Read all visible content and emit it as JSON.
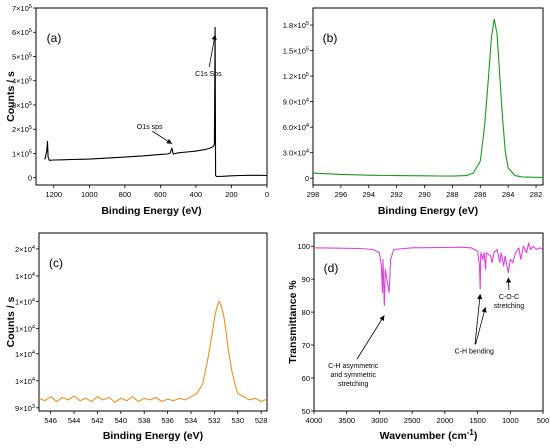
{
  "chart_data": [
    {
      "type": "line",
      "panel_label": "(a)",
      "xlabel": "Binding Energy (eV)",
      "ylabel": "Counts / s",
      "xlim": [
        1300,
        0
      ],
      "ylim": [
        -30000,
        700000
      ],
      "x_reversed": true,
      "xticks": [
        {
          "v": 1200,
          "t": "1200"
        },
        {
          "v": 1000,
          "t": "1000"
        },
        {
          "v": 800,
          "t": "800"
        },
        {
          "v": 600,
          "t": "600"
        },
        {
          "v": 400,
          "t": "400"
        },
        {
          "v": 200,
          "t": "200"
        },
        {
          "v": 0,
          "t": "0"
        }
      ],
      "yticks": [
        {
          "v": 0,
          "t": "0"
        },
        {
          "v": 100000,
          "t": "1×10⁵"
        },
        {
          "v": 200000,
          "t": "2×10⁵"
        },
        {
          "v": 300000,
          "t": "3×10⁵"
        },
        {
          "v": 400000,
          "t": "4×10⁵"
        },
        {
          "v": 500000,
          "t": "5×10⁵"
        },
        {
          "v": 600000,
          "t": "6×10⁵"
        },
        {
          "v": 700000,
          "t": "7×10⁵"
        }
      ],
      "series": [
        {
          "color": "#000000",
          "points": [
            [
              1250,
              75000
            ],
            [
              1240,
              110000
            ],
            [
              1235,
              150000
            ],
            [
              1232,
              85000
            ],
            [
              1225,
              72000
            ],
            [
              1200,
              73000
            ],
            [
              1150,
              74000
            ],
            [
              1100,
              75000
            ],
            [
              1050,
              76000
            ],
            [
              1000,
              77000
            ],
            [
              950,
              79000
            ],
            [
              900,
              81000
            ],
            [
              850,
              83000
            ],
            [
              800,
              85000
            ],
            [
              750,
              88000
            ],
            [
              700,
              90000
            ],
            [
              650,
              93000
            ],
            [
              600,
              96000
            ],
            [
              560,
              98000
            ],
            [
              545,
              102000
            ],
            [
              535,
              122000
            ],
            [
              528,
              98000
            ],
            [
              500,
              103000
            ],
            [
              450,
              106000
            ],
            [
              400,
              110000
            ],
            [
              350,
              116000
            ],
            [
              320,
              122000
            ],
            [
              300,
              130000
            ],
            [
              296,
              140000
            ],
            [
              292,
              620000
            ],
            [
              289,
              10000
            ],
            [
              285,
              5000
            ],
            [
              250,
              6000
            ],
            [
              200,
              8000
            ],
            [
              150,
              9000
            ],
            [
              100,
              10000
            ],
            [
              50,
              10000
            ],
            [
              0,
              9000
            ]
          ]
        }
      ],
      "annotations": [
        {
          "text": "C1s Sps",
          "label_x": 330,
          "label_y": 420000,
          "arrow_to": [
            292,
            590000
          ]
        },
        {
          "text": "O1s sps",
          "label_x": 660,
          "label_y": 200000,
          "arrow_to": [
            535,
            140000
          ]
        }
      ]
    },
    {
      "type": "line",
      "panel_label": "(b)",
      "xlabel": "Binding Energy (eV)",
      "ylabel": "",
      "xlim": [
        298,
        281.5
      ],
      "ylim": [
        -8000,
        200000
      ],
      "x_reversed": true,
      "xticks": [
        {
          "v": 298,
          "t": "298"
        },
        {
          "v": 296,
          "t": "296"
        },
        {
          "v": 294,
          "t": "294"
        },
        {
          "v": 292,
          "t": "292"
        },
        {
          "v": 290,
          "t": "290"
        },
        {
          "v": 288,
          "t": "288"
        },
        {
          "v": 286,
          "t": "286"
        },
        {
          "v": 284,
          "t": "284"
        },
        {
          "v": 282,
          "t": "282"
        }
      ],
      "yticks": [
        {
          "v": 0,
          "t": "0"
        },
        {
          "v": 30000,
          "t": "3.0×10⁴"
        },
        {
          "v": 60000,
          "t": "6.0×10⁴"
        },
        {
          "v": 90000,
          "t": "9.0×10⁴"
        },
        {
          "v": 120000,
          "t": "1.2×10⁵"
        },
        {
          "v": 150000,
          "t": "1.5×10⁵"
        },
        {
          "v": 180000,
          "t": "1.8×10⁵"
        }
      ],
      "series": [
        {
          "color": "#1a9a1a",
          "points": [
            [
              298,
              6000
            ],
            [
              296,
              4500
            ],
            [
              294,
              3500
            ],
            [
              292,
              3000
            ],
            [
              290,
              2800
            ],
            [
              289,
              2600
            ],
            [
              288,
              2500
            ],
            [
              287,
              3000
            ],
            [
              286.5,
              6000
            ],
            [
              286,
              20000
            ],
            [
              285.7,
              60000
            ],
            [
              285.4,
              120000
            ],
            [
              285.2,
              165000
            ],
            [
              285,
              187000
            ],
            [
              284.8,
              170000
            ],
            [
              284.6,
              120000
            ],
            [
              284.4,
              70000
            ],
            [
              284.2,
              30000
            ],
            [
              284,
              12000
            ],
            [
              283.5,
              3000
            ],
            [
              283,
              1500
            ],
            [
              282,
              1000
            ],
            [
              281.5,
              900
            ]
          ]
        }
      ],
      "annotations": []
    },
    {
      "type": "line",
      "panel_label": "(c)",
      "xlabel": "Binding Energy (eV)",
      "ylabel": "Counts / s",
      "xlim": [
        547,
        527.5
      ],
      "ylim": [
        8800,
        20000
      ],
      "x_reversed": true,
      "xticks": [
        {
          "v": 546,
          "t": "546"
        },
        {
          "v": 544,
          "t": "544"
        },
        {
          "v": 542,
          "t": "542"
        },
        {
          "v": 540,
          "t": "540"
        },
        {
          "v": 538,
          "t": "538"
        },
        {
          "v": 536,
          "t": "536"
        },
        {
          "v": 534,
          "t": "534"
        },
        {
          "v": 532,
          "t": "532"
        },
        {
          "v": 530,
          "t": "530"
        },
        {
          "v": 528,
          "t": "528"
        }
      ],
      "yticks": [
        {
          "v": 9000,
          "t": "9×10³"
        },
        {
          "v": 10700,
          "t": "1×10⁴"
        },
        {
          "v": 12400,
          "t": "1×10⁴"
        },
        {
          "v": 14000,
          "t": "1×10⁴"
        },
        {
          "v": 15700,
          "t": "1×10⁴"
        },
        {
          "v": 17300,
          "t": "1×10⁴"
        },
        {
          "v": 19000,
          "t": "2×10⁴"
        }
      ],
      "series": [
        {
          "color": "#f0901e",
          "points": [
            [
              547,
              9600
            ],
            [
              546.5,
              9450
            ],
            [
              546,
              9700
            ],
            [
              545.5,
              9400
            ],
            [
              545,
              9650
            ],
            [
              544.5,
              9500
            ],
            [
              544,
              9750
            ],
            [
              543.5,
              9450
            ],
            [
              543,
              9600
            ],
            [
              542.5,
              9400
            ],
            [
              542,
              9700
            ],
            [
              541.5,
              9500
            ],
            [
              541,
              9650
            ],
            [
              540.5,
              9350
            ],
            [
              540,
              9600
            ],
            [
              539.5,
              9450
            ],
            [
              539,
              9700
            ],
            [
              538.5,
              9400
            ],
            [
              538,
              9600
            ],
            [
              537.5,
              9500
            ],
            [
              537,
              9650
            ],
            [
              536.5,
              9400
            ],
            [
              536,
              9550
            ],
            [
              535.5,
              9450
            ],
            [
              535,
              9600
            ],
            [
              534.5,
              9500
            ],
            [
              534,
              9700
            ],
            [
              533.5,
              9900
            ],
            [
              533,
              10500
            ],
            [
              532.8,
              11200
            ],
            [
              532.5,
              12300
            ],
            [
              532.2,
              13600
            ],
            [
              532,
              14600
            ],
            [
              531.8,
              15300
            ],
            [
              531.6,
              15700
            ],
            [
              531.4,
              15400
            ],
            [
              531.2,
              14800
            ],
            [
              531,
              13800
            ],
            [
              530.8,
              12600
            ],
            [
              530.5,
              11300
            ],
            [
              530.2,
              10400
            ],
            [
              530,
              9900
            ],
            [
              529.5,
              9700
            ],
            [
              529,
              9500
            ],
            [
              528.5,
              9600
            ],
            [
              528,
              9400
            ],
            [
              527.5,
              9550
            ]
          ]
        }
      ],
      "annotations": []
    },
    {
      "type": "line",
      "panel_label": "(d)",
      "xlabel": "Wavenumber (cm⁻¹)",
      "ylabel": "Transmittance %",
      "xlim": [
        4000,
        500
      ],
      "ylim": [
        50,
        104
      ],
      "x_reversed": true,
      "xticks": [
        {
          "v": 4000,
          "t": "4000"
        },
        {
          "v": 3500,
          "t": "3500"
        },
        {
          "v": 3000,
          "t": "3000"
        },
        {
          "v": 2500,
          "t": "2500"
        },
        {
          "v": 2000,
          "t": "2000"
        },
        {
          "v": 1500,
          "t": "1500"
        },
        {
          "v": 1000,
          "t": "1000"
        },
        {
          "v": 500,
          "t": "500"
        }
      ],
      "yticks": [
        {
          "v": 50,
          "t": "50"
        },
        {
          "v": 60,
          "t": "60"
        },
        {
          "v": 70,
          "t": "70"
        },
        {
          "v": 80,
          "t": "80"
        },
        {
          "v": 90,
          "t": "90"
        },
        {
          "v": 100,
          "t": "100"
        }
      ],
      "series": [
        {
          "color": "#e040e0",
          "points": [
            [
              4000,
              99.5
            ],
            [
              3600,
              99.4
            ],
            [
              3300,
              99.3
            ],
            [
              3100,
              99.0
            ],
            [
              3000,
              98.0
            ],
            [
              2970,
              94.0
            ],
            [
              2955,
              86.0
            ],
            [
              2945,
              96.0
            ],
            [
              2925,
              82.0
            ],
            [
              2910,
              93.0
            ],
            [
              2870,
              88.0
            ],
            [
              2850,
              86.0
            ],
            [
              2830,
              96.0
            ],
            [
              2780,
              99.0
            ],
            [
              2500,
              99.5
            ],
            [
              2000,
              99.6
            ],
            [
              1750,
              99.7
            ],
            [
              1600,
              99.5
            ],
            [
              1500,
              98.5
            ],
            [
              1470,
              94.0
            ],
            [
              1460,
              87.0
            ],
            [
              1450,
              98.0
            ],
            [
              1420,
              96.0
            ],
            [
              1400,
              98.0
            ],
            [
              1378,
              93.0
            ],
            [
              1365,
              98.0
            ],
            [
              1300,
              97.0
            ],
            [
              1280,
              95.0
            ],
            [
              1250,
              98.0
            ],
            [
              1200,
              99.0
            ],
            [
              1160,
              95.0
            ],
            [
              1140,
              98.0
            ],
            [
              1100,
              94.0
            ],
            [
              1080,
              97.0
            ],
            [
              1030,
              92.0
            ],
            [
              1000,
              96.0
            ],
            [
              960,
              95.0
            ],
            [
              920,
              98.0
            ],
            [
              870,
              99.5
            ],
            [
              840,
              96.0
            ],
            [
              800,
              100.0
            ],
            [
              750,
              98.0
            ],
            [
              720,
              101.0
            ],
            [
              690,
              99.0
            ],
            [
              650,
              100.0
            ],
            [
              600,
              99.0
            ],
            [
              550,
              99.5
            ],
            [
              500,
              99.0
            ]
          ]
        }
      ],
      "annotations": [
        {
          "text": "C-H asymmetric",
          "text2": "and symmetric",
          "text3": "stretching",
          "label_x": 3400,
          "label_y": 63,
          "arrow_to": [
            2925,
            79
          ]
        },
        {
          "text": "C-H bending",
          "text2": "",
          "text3": "",
          "label_x": 1550,
          "label_y": 67.5,
          "arrow_to": [
            1460,
            85.5
          ],
          "arrow_to2": [
            1380,
            81.5
          ]
        },
        {
          "text": "C-O-C",
          "text2": "stretching",
          "text3": "",
          "label_x": 1020,
          "label_y": 84,
          "arrow_to": [
            1030,
            90.5
          ]
        }
      ]
    }
  ]
}
